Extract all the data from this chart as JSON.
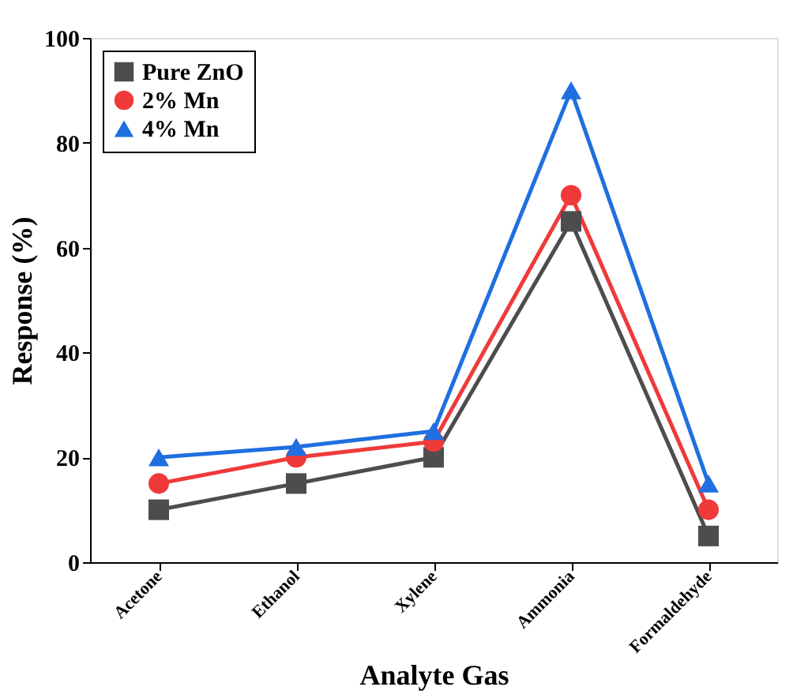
{
  "chart_data": {
    "type": "line",
    "xlabel": "Analyte Gas",
    "ylabel": "Response (%)",
    "categories": [
      "Acetone",
      "Ethanol",
      "Xylene",
      "Ammonia",
      "Formaldehyde"
    ],
    "series": [
      {
        "name": "Pure ZnO",
        "color": "#4d4d4d",
        "marker": "square",
        "values": [
          10,
          15,
          20,
          65,
          5
        ]
      },
      {
        "name": "2% Mn",
        "color": "#f03a3a",
        "marker": "circle",
        "values": [
          15,
          20,
          23,
          70,
          10
        ]
      },
      {
        "name": "4% Mn",
        "color": "#1f6fe0",
        "marker": "triangle",
        "values": [
          20,
          22,
          25,
          90,
          15
        ]
      }
    ],
    "ylim": [
      0,
      100
    ],
    "yticks": [
      0,
      20,
      40,
      60,
      80,
      100
    ],
    "grid": false,
    "legend": "top left",
    "line_style": "solid"
  }
}
